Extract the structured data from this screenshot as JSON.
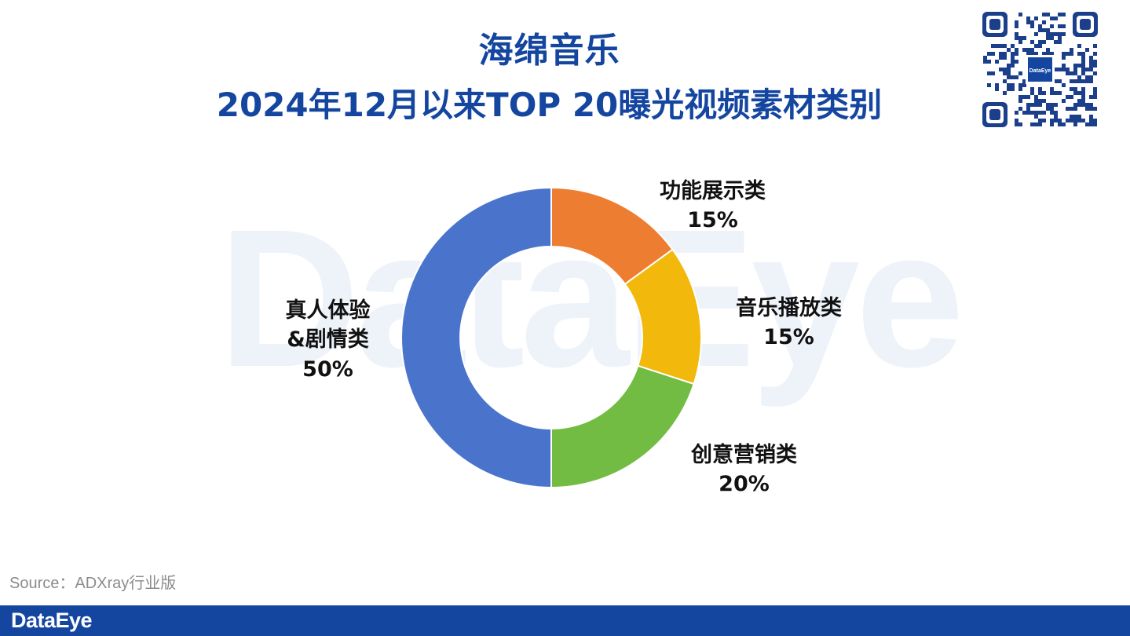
{
  "watermark": "DataEye",
  "title_line1": "海绵音乐",
  "title_line2": "2024年12月以来TOP 20曝光视频素材类别",
  "qr_logo": "DataEye",
  "source": "Source：ADXray行业版",
  "footer_logo": "DataEye",
  "chart_data": {
    "type": "pie",
    "donut": true,
    "start_angle_deg": 0,
    "direction": "clockwise",
    "slices": [
      {
        "label": "功能展示类",
        "value": 15,
        "display": "15%",
        "color": "#ed7d31"
      },
      {
        "label": "音乐播放类",
        "value": 15,
        "display": "15%",
        "color": "#f2b90c"
      },
      {
        "label": "创意营销类",
        "value": 20,
        "display": "20%",
        "color": "#73bc44"
      },
      {
        "label": "真人体验\n&剧情类",
        "label_lines": [
          "真人体验",
          "&剧情类"
        ],
        "value": 50,
        "display": "50%",
        "color": "#4a74cc"
      }
    ]
  }
}
